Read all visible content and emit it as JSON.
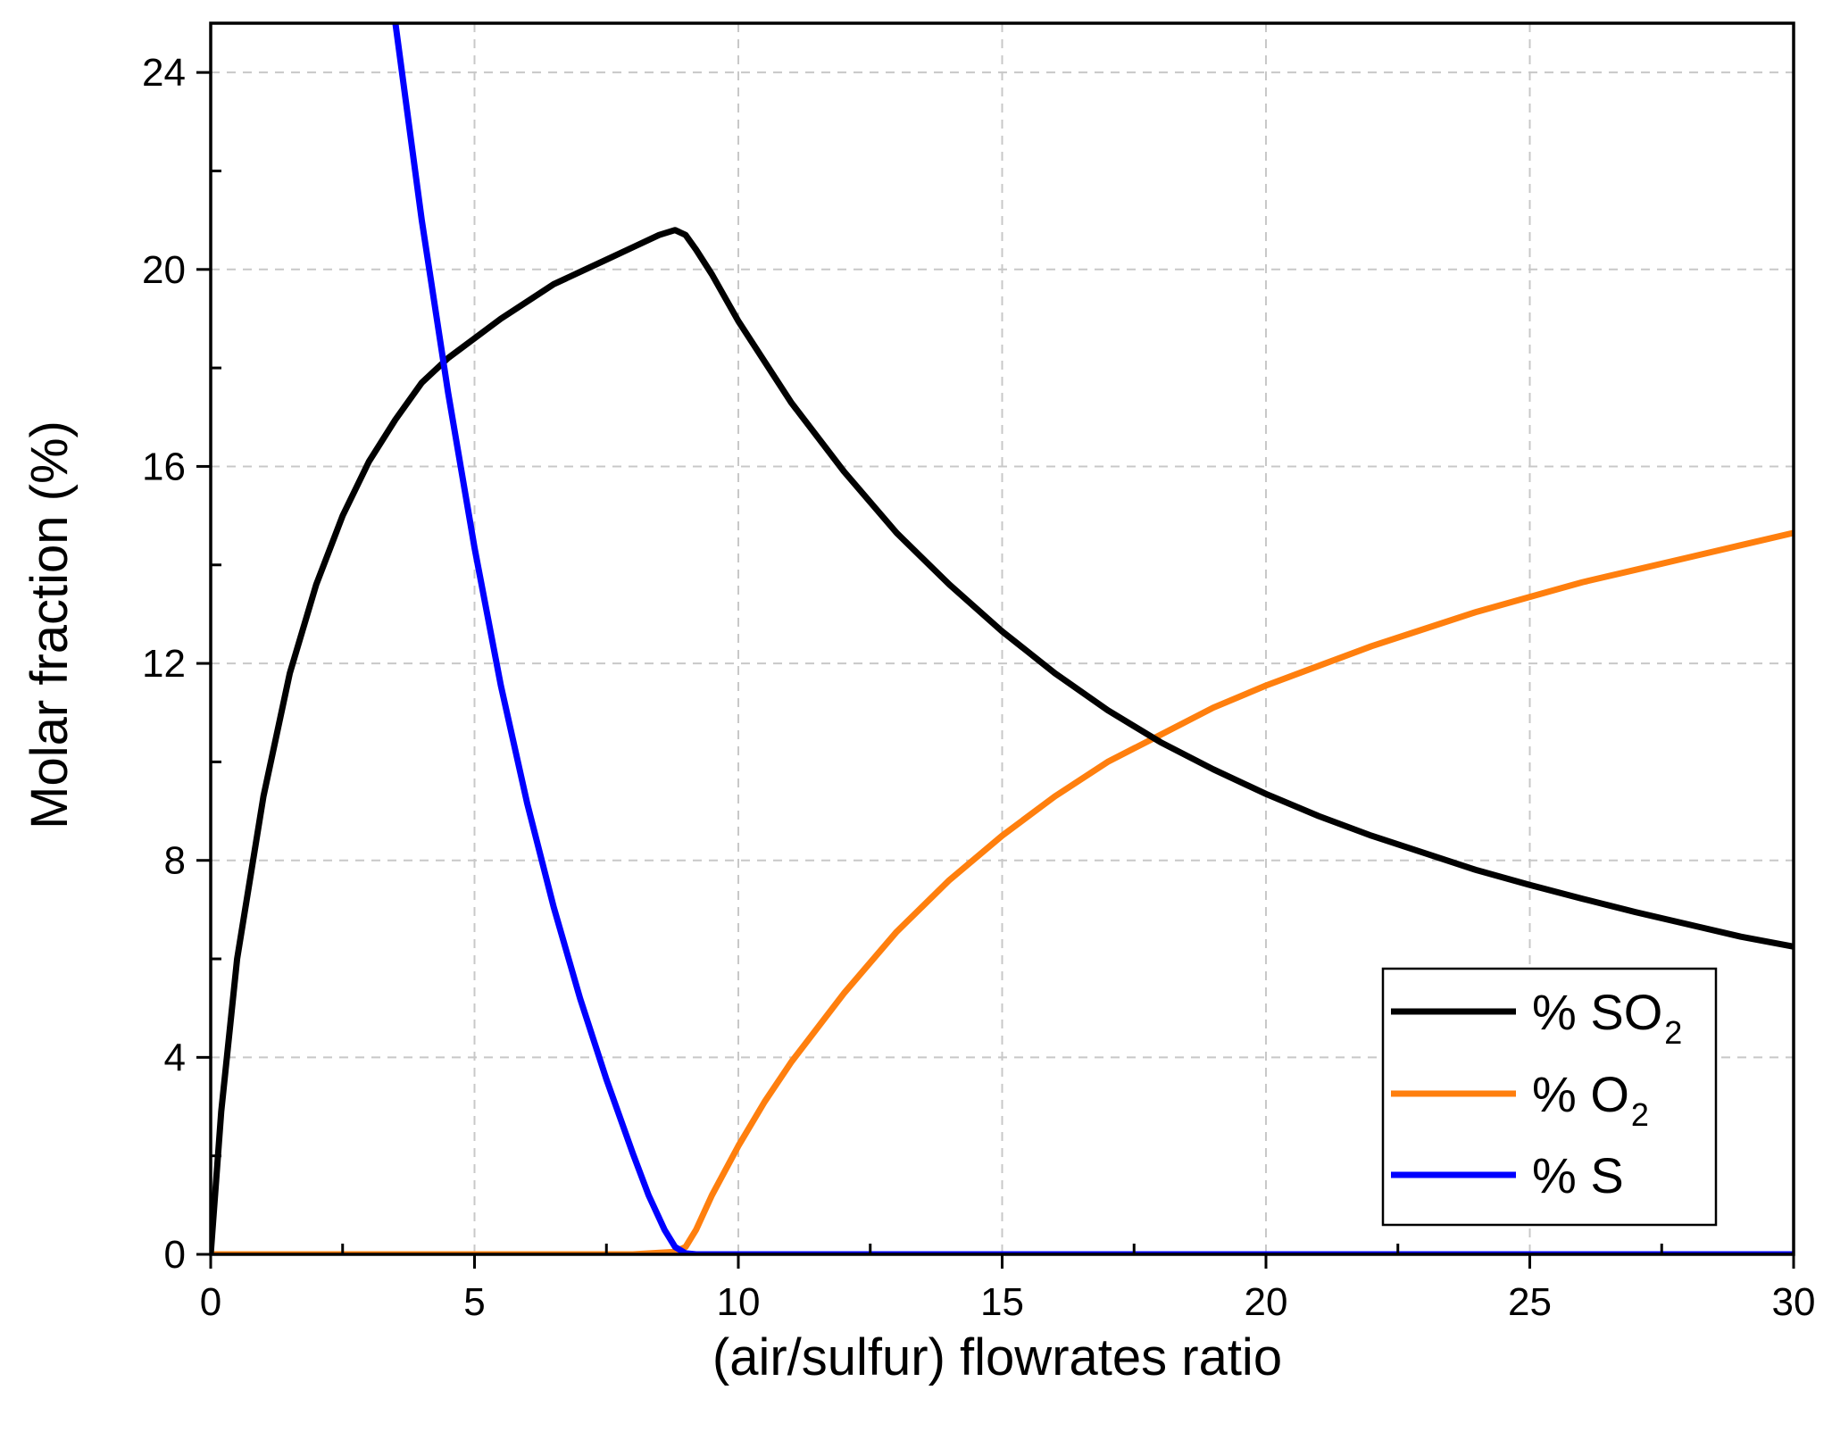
{
  "chart_data": {
    "type": "line",
    "title": "",
    "xlabel": "(air/sulfur) flowrates ratio",
    "ylabel": "Molar fraction (%)",
    "xlim": [
      0,
      30
    ],
    "ylim": [
      0,
      25
    ],
    "xticks": [
      0,
      5,
      10,
      15,
      20,
      25,
      30
    ],
    "xtick_labels": [
      "0",
      "5",
      "10",
      "15",
      "20",
      "25",
      "30"
    ],
    "yticks": [
      0,
      4,
      8,
      12,
      16,
      20,
      24
    ],
    "ytick_labels": [
      "0",
      "4",
      "8",
      "12",
      "16",
      "20",
      "24"
    ],
    "grid": true,
    "legend_position": "bottom-right",
    "series": [
      {
        "name": "% SO2",
        "legend_main": "% SO",
        "legend_sub": "2",
        "color": "#000000",
        "x": [
          0,
          0.2,
          0.5,
          1,
          1.5,
          2,
          2.5,
          3,
          3.5,
          4,
          4.5,
          5,
          5.5,
          6,
          6.5,
          7,
          7.5,
          8,
          8.5,
          8.8,
          9,
          9.2,
          9.5,
          10,
          11,
          12,
          13,
          14,
          15,
          16,
          17,
          18,
          19,
          20,
          21,
          22,
          23,
          24,
          25,
          26,
          27,
          28,
          29,
          30
        ],
        "y": [
          0,
          2.9,
          6.0,
          9.3,
          11.8,
          13.6,
          15.0,
          16.1,
          16.95,
          17.7,
          18.2,
          18.6,
          19.0,
          19.35,
          19.7,
          19.95,
          20.2,
          20.45,
          20.7,
          20.8,
          20.7,
          20.4,
          19.9,
          18.95,
          17.3,
          15.9,
          14.65,
          13.6,
          12.65,
          11.8,
          11.05,
          10.4,
          9.85,
          9.35,
          8.9,
          8.5,
          8.15,
          7.8,
          7.5,
          7.22,
          6.95,
          6.7,
          6.45,
          6.25
        ]
      },
      {
        "name": "% O2",
        "legend_main": "% O",
        "legend_sub": "2",
        "color": "#ff7f0e",
        "x": [
          0,
          2,
          4,
          6,
          8,
          8.8,
          9.0,
          9.2,
          9.5,
          10,
          10.5,
          11,
          12,
          13,
          14,
          15,
          16,
          17,
          18,
          19,
          20,
          21,
          22,
          23,
          24,
          25,
          26,
          27,
          28,
          29,
          30
        ],
        "y": [
          0,
          0,
          0,
          0,
          0,
          0.05,
          0.15,
          0.5,
          1.2,
          2.2,
          3.1,
          3.9,
          5.3,
          6.55,
          7.6,
          8.5,
          9.3,
          10.0,
          10.55,
          11.1,
          11.55,
          11.95,
          12.35,
          12.7,
          13.05,
          13.35,
          13.65,
          13.9,
          14.15,
          14.4,
          14.65
        ]
      },
      {
        "name": "% S",
        "legend_main": "% S",
        "legend_sub": "",
        "color": "#0000ff",
        "x": [
          3.5,
          3.7,
          4,
          4.5,
          5,
          5.5,
          6,
          6.5,
          7,
          7.5,
          8,
          8.3,
          8.6,
          8.8,
          9.0,
          9.2,
          10,
          15,
          20,
          25,
          30
        ],
        "y": [
          25,
          23.4,
          21.0,
          17.5,
          14.35,
          11.55,
          9.15,
          7.05,
          5.2,
          3.55,
          2.05,
          1.2,
          0.5,
          0.15,
          0.02,
          0,
          0,
          0,
          0,
          0,
          0
        ]
      }
    ]
  }
}
